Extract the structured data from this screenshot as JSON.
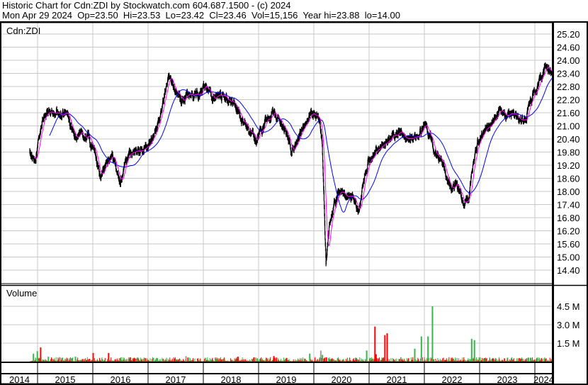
{
  "header": {
    "title": "Historic Chart for Cdn:ZDI by Stockwatch.com 604.687.1500 - (c) 2024",
    "quote": "Mon Apr 29 2024  Op=23.50  Hi=23.53  Lo=23.42  Cl=23.46  Vol=15,156  Year hi=23.88  lo=14.00"
  },
  "chart_data": [
    {
      "type": "line",
      "subtype": "ohlc-bars-with-moving-averages",
      "title": "Cdn:ZDI",
      "x_unit": "year",
      "xlim": [
        2014.86,
        2024.33
      ],
      "ylim": [
        14.0,
        25.5
      ],
      "y_ticks": [
        "25.20",
        "24.60",
        "24.00",
        "23.40",
        "22.80",
        "22.20",
        "21.60",
        "21.00",
        "20.40",
        "19.80",
        "19.20",
        "18.60",
        "18.00",
        "17.40",
        "16.80",
        "16.20",
        "15.60",
        "15.00",
        "14.40"
      ],
      "y_axis_side": "right",
      "grid": true,
      "colors": {
        "bars": "#000000",
        "close_tick": "#ff0000",
        "ma_short": "#ff00ff",
        "ma_long": "#0000ff",
        "grid": "#c8c8c8"
      },
      "close_series": [
        [
          2014.86,
          19.95
        ],
        [
          2014.96,
          19.46
        ],
        [
          2015.06,
          20.9
        ],
        [
          2015.15,
          21.7
        ],
        [
          2015.28,
          21.6
        ],
        [
          2015.41,
          21.4
        ],
        [
          2015.54,
          21.6
        ],
        [
          2015.67,
          20.4
        ],
        [
          2015.79,
          20.6
        ],
        [
          2015.92,
          20.4
        ],
        [
          2016.05,
          19.5
        ],
        [
          2016.14,
          18.65
        ],
        [
          2016.24,
          19.3
        ],
        [
          2016.35,
          19.6
        ],
        [
          2016.44,
          18.8
        ],
        [
          2016.5,
          18.3
        ],
        [
          2016.6,
          19.45
        ],
        [
          2016.76,
          19.8
        ],
        [
          2016.95,
          19.95
        ],
        [
          2017.08,
          20.4
        ],
        [
          2017.24,
          21.6
        ],
        [
          2017.33,
          22.9
        ],
        [
          2017.4,
          23.35
        ],
        [
          2017.5,
          22.5
        ],
        [
          2017.65,
          22.2
        ],
        [
          2017.78,
          22.4
        ],
        [
          2017.91,
          22.4
        ],
        [
          2018.04,
          22.7
        ],
        [
          2018.17,
          22.2
        ],
        [
          2018.29,
          22.5
        ],
        [
          2018.42,
          22.2
        ],
        [
          2018.55,
          22.05
        ],
        [
          2018.68,
          21.4
        ],
        [
          2018.81,
          20.9
        ],
        [
          2018.94,
          20.4
        ],
        [
          2019.04,
          20.7
        ],
        [
          2019.17,
          21.4
        ],
        [
          2019.27,
          21.6
        ],
        [
          2019.38,
          21.25
        ],
        [
          2019.51,
          20.6
        ],
        [
          2019.6,
          19.8
        ],
        [
          2019.71,
          20.4
        ],
        [
          2019.83,
          21.1
        ],
        [
          2019.96,
          21.6
        ],
        [
          2020.09,
          21.4
        ],
        [
          2020.15,
          20.3
        ],
        [
          2020.19,
          17.0
        ],
        [
          2020.22,
          14.75
        ],
        [
          2020.28,
          16.4
        ],
        [
          2020.37,
          17.35
        ],
        [
          2020.45,
          18.0
        ],
        [
          2020.54,
          18.0
        ],
        [
          2020.63,
          17.8
        ],
        [
          2020.73,
          17.7
        ],
        [
          2020.82,
          17.0
        ],
        [
          2020.88,
          18.3
        ],
        [
          2020.99,
          19.45
        ],
        [
          2021.12,
          19.8
        ],
        [
          2021.24,
          20.1
        ],
        [
          2021.37,
          20.4
        ],
        [
          2021.5,
          20.75
        ],
        [
          2021.63,
          20.6
        ],
        [
          2021.76,
          20.3
        ],
        [
          2021.88,
          20.6
        ],
        [
          2022.01,
          20.9
        ],
        [
          2022.1,
          20.6
        ],
        [
          2022.17,
          19.8
        ],
        [
          2022.27,
          19.45
        ],
        [
          2022.37,
          19.0
        ],
        [
          2022.46,
          18.15
        ],
        [
          2022.59,
          18.3
        ],
        [
          2022.72,
          17.35
        ],
        [
          2022.81,
          17.7
        ],
        [
          2022.88,
          19.3
        ],
        [
          2022.97,
          20.3
        ],
        [
          2023.1,
          20.75
        ],
        [
          2023.23,
          21.25
        ],
        [
          2023.36,
          21.7
        ],
        [
          2023.49,
          21.4
        ],
        [
          2023.62,
          21.6
        ],
        [
          2023.74,
          21.25
        ],
        [
          2023.83,
          21.4
        ],
        [
          2023.94,
          22.2
        ],
        [
          2024.04,
          22.7
        ],
        [
          2024.13,
          23.2
        ],
        [
          2024.19,
          23.7
        ],
        [
          2024.26,
          23.5
        ],
        [
          2024.31,
          23.46
        ]
      ]
    },
    {
      "type": "bar",
      "title": "Volume",
      "x_unit": "year",
      "ylim": [
        0,
        5500000
      ],
      "y_ticks": [
        "4.5 M",
        "3.0 M",
        "1.5 M"
      ],
      "colors": {
        "up": "#3cb44b",
        "down": "#ff0000",
        "unchanged": "#a0a0a0"
      },
      "spikes": [
        [
          2014.92,
          650000,
          "up"
        ],
        [
          2014.99,
          850000,
          "up"
        ],
        [
          2015.05,
          1150000,
          "down"
        ],
        [
          2015.19,
          400000,
          "up"
        ],
        [
          2015.68,
          400000,
          "up"
        ],
        [
          2016.0,
          700000,
          "down"
        ],
        [
          2016.28,
          700000,
          "down"
        ],
        [
          2016.67,
          350000,
          "down"
        ],
        [
          2016.74,
          300000,
          "down"
        ],
        [
          2017.08,
          250000,
          "unchanged"
        ],
        [
          2017.09,
          300000,
          "up"
        ],
        [
          2017.15,
          300000,
          "up"
        ],
        [
          2017.68,
          450000,
          "unchanged"
        ],
        [
          2018.62,
          400000,
          "down"
        ],
        [
          2018.91,
          350000,
          "down"
        ],
        [
          2019.27,
          450000,
          "down"
        ],
        [
          2019.5,
          300000,
          "down"
        ],
        [
          2019.92,
          650000,
          "up"
        ],
        [
          2020.12,
          900000,
          "unchanged"
        ],
        [
          2020.14,
          300000,
          "down"
        ],
        [
          2020.15,
          550000,
          "up"
        ],
        [
          2020.22,
          350000,
          "down"
        ],
        [
          2020.95,
          900000,
          "up"
        ],
        [
          2021.1,
          2850000,
          "down"
        ],
        [
          2021.12,
          600000,
          "down"
        ],
        [
          2021.28,
          2150000,
          "down"
        ],
        [
          2021.32,
          2300000,
          "down"
        ],
        [
          2021.82,
          1050000,
          "up"
        ],
        [
          2021.94,
          2050000,
          "up"
        ],
        [
          2021.95,
          300000,
          "unchanged"
        ],
        [
          2022.06,
          2050000,
          "up"
        ],
        [
          2022.14,
          4500000,
          "up"
        ],
        [
          2022.85,
          1850000,
          "up"
        ],
        [
          2022.9,
          1750000,
          "up"
        ]
      ]
    }
  ],
  "x_axis": {
    "years": [
      "2014",
      "2015",
      "2016",
      "2017",
      "2018",
      "2019",
      "2020",
      "2021",
      "2022",
      "2023",
      "2024"
    ]
  }
}
